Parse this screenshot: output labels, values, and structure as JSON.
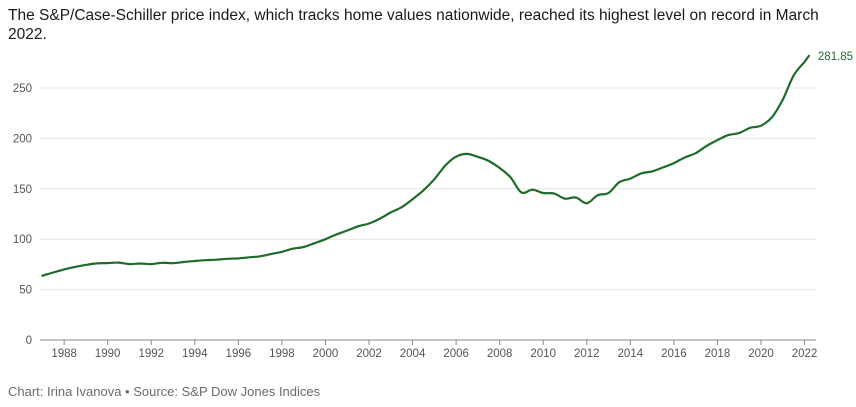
{
  "header": {
    "title": "The S&P/Case-Schiller price index, which tracks home values nationwide, reached its highest level on record in March 2022."
  },
  "footer": {
    "credit": "Chart: Irina Ivanova • Source: S&P Dow Jones Indices"
  },
  "colors": {
    "line": "#1e6b2a",
    "grid": "#e6e6e6",
    "axis": "#888888"
  },
  "chart_data": {
    "type": "line",
    "title": "The S&P/Case-Schiller price index, which tracks home values nationwide, reached its highest level on record in March 2022.",
    "xlabel": "",
    "ylabel": "",
    "xlim": [
      1986.8,
      2022.25
    ],
    "ylim": [
      0,
      280
    ],
    "y_ticks": [
      0,
      50,
      100,
      150,
      200,
      250
    ],
    "x_ticks": [
      1988,
      1990,
      1992,
      1994,
      1996,
      1998,
      2000,
      2002,
      2004,
      2006,
      2008,
      2010,
      2012,
      2014,
      2016,
      2018,
      2020,
      2022
    ],
    "grid": true,
    "series": [
      {
        "x": [
          1987.0,
          1987.5,
          1988.0,
          1988.5,
          1989.0,
          1989.5,
          1990.0,
          1990.5,
          1991.0,
          1991.5,
          1992.0,
          1992.5,
          1993.0,
          1993.5,
          1994.0,
          1994.5,
          1995.0,
          1995.5,
          1996.0,
          1996.5,
          1997.0,
          1997.5,
          1998.0,
          1998.5,
          1999.0,
          1999.5,
          2000.0,
          2000.5,
          2001.0,
          2001.5,
          2002.0,
          2002.5,
          2003.0,
          2003.5,
          2004.0,
          2004.5,
          2005.0,
          2005.5,
          2006.0,
          2006.5,
          2007.0,
          2007.5,
          2008.0,
          2008.5,
          2009.0,
          2009.5,
          2010.0,
          2010.5,
          2011.0,
          2011.5,
          2012.0,
          2012.5,
          2013.0,
          2013.5,
          2014.0,
          2014.5,
          2015.0,
          2015.5,
          2016.0,
          2016.5,
          2017.0,
          2017.5,
          2018.0,
          2018.5,
          2019.0,
          2019.5,
          2020.0,
          2020.5,
          2021.0,
          2021.5,
          2022.0,
          2022.2
        ],
        "y": [
          63.8,
          67,
          70,
          72.5,
          74.5,
          76,
          76.3,
          76.8,
          75.3,
          75.9,
          75.3,
          76.6,
          76.2,
          77.4,
          78.4,
          79.2,
          79.7,
          80.6,
          81.0,
          82.0,
          83.0,
          85.3,
          87.5,
          90.6,
          92.3,
          96.0,
          100.0,
          104.7,
          108.6,
          112.8,
          115.6,
          120.4,
          126.6,
          131.7,
          139.7,
          148.5,
          159.4,
          173.0,
          181.9,
          184.6,
          181.6,
          177.6,
          170.6,
          161.3,
          146.3,
          149.1,
          145.8,
          145.3,
          140.2,
          141.4,
          135.6,
          143.6,
          145.9,
          156.6,
          160.1,
          165.3,
          167.3,
          171.2,
          175.5,
          181.1,
          185.3,
          192.6,
          198.3,
          203.3,
          205.4,
          210.5,
          212.6,
          221.0,
          238.5,
          262.5,
          276.0,
          281.85
        ],
        "end_label": "281.85"
      }
    ]
  }
}
